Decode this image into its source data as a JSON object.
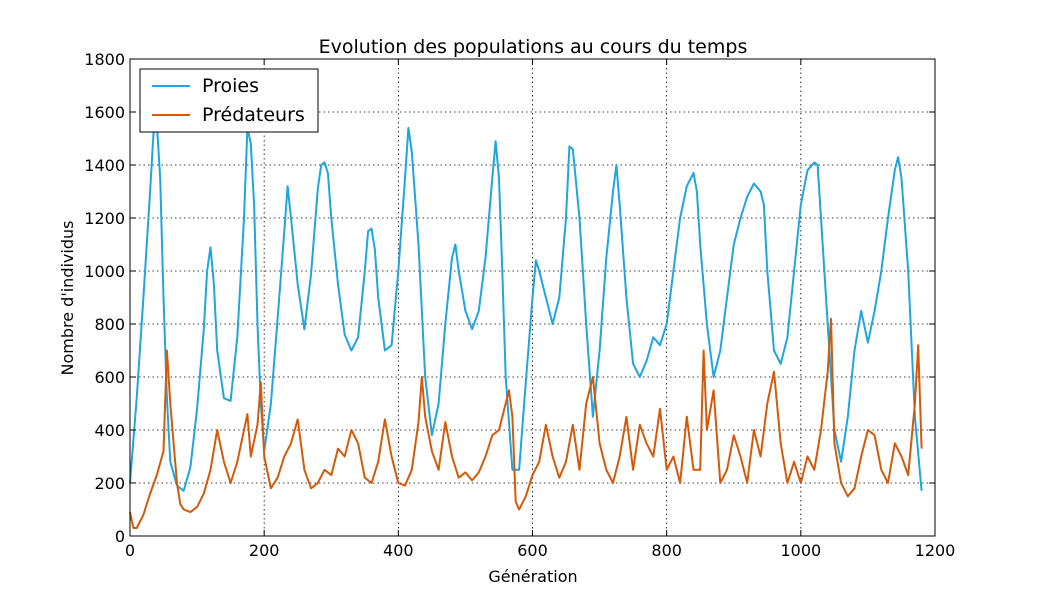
{
  "chart_data": {
    "type": "line",
    "title": "Evolution des populations au cours du temps",
    "xlabel": "Génération",
    "ylabel": "Nombre d'individus",
    "xlim": [
      0,
      1200
    ],
    "ylim": [
      0,
      1800
    ],
    "xticks": [
      0,
      200,
      400,
      600,
      800,
      1000,
      1200
    ],
    "yticks": [
      0,
      200,
      400,
      600,
      800,
      1000,
      1200,
      1400,
      1600,
      1800
    ],
    "grid": true,
    "legend_position": "upper-left",
    "series": [
      {
        "name": "Proies",
        "color": "#1fa5e0",
        "x": [
          0,
          10,
          20,
          30,
          35,
          40,
          45,
          50,
          55,
          60,
          70,
          80,
          90,
          100,
          110,
          115,
          120,
          125,
          130,
          140,
          150,
          160,
          170,
          175,
          180,
          185,
          190,
          195,
          200,
          210,
          220,
          230,
          235,
          240,
          250,
          260,
          270,
          280,
          285,
          290,
          295,
          300,
          310,
          320,
          330,
          340,
          350,
          355,
          360,
          365,
          370,
          380,
          390,
          400,
          410,
          415,
          420,
          430,
          440,
          450,
          460,
          470,
          480,
          485,
          490,
          500,
          510,
          520,
          530,
          540,
          545,
          550,
          555,
          560,
          570,
          580,
          590,
          600,
          605,
          610,
          620,
          630,
          640,
          650,
          655,
          660,
          670,
          680,
          690,
          700,
          710,
          720,
          725,
          730,
          740,
          750,
          760,
          770,
          780,
          790,
          800,
          810,
          820,
          830,
          840,
          845,
          850,
          860,
          870,
          880,
          890,
          900,
          910,
          920,
          930,
          940,
          945,
          950,
          960,
          970,
          980,
          990,
          1000,
          1010,
          1020,
          1025,
          1030,
          1040,
          1050,
          1060,
          1070,
          1080,
          1090,
          1100,
          1110,
          1120,
          1130,
          1140,
          1145,
          1150,
          1160,
          1170,
          1180
        ],
        "values": [
          200,
          520,
          900,
          1300,
          1520,
          1560,
          1350,
          900,
          520,
          280,
          190,
          170,
          260,
          480,
          780,
          1000,
          1090,
          950,
          700,
          520,
          510,
          750,
          1200,
          1540,
          1480,
          1250,
          800,
          500,
          320,
          500,
          820,
          1150,
          1320,
          1200,
          950,
          780,
          990,
          1310,
          1400,
          1410,
          1370,
          1200,
          950,
          760,
          700,
          750,
          1000,
          1150,
          1160,
          1080,
          900,
          700,
          720,
          1000,
          1350,
          1540,
          1450,
          1100,
          600,
          380,
          500,
          800,
          1050,
          1100,
          1000,
          850,
          780,
          850,
          1050,
          1350,
          1490,
          1350,
          1000,
          600,
          250,
          250,
          580,
          900,
          1040,
          1000,
          900,
          800,
          900,
          1200,
          1470,
          1460,
          1200,
          800,
          450,
          700,
          1050,
          1300,
          1400,
          1250,
          900,
          650,
          600,
          660,
          750,
          720,
          800,
          1000,
          1200,
          1320,
          1370,
          1300,
          1100,
          800,
          600,
          700,
          900,
          1100,
          1200,
          1280,
          1330,
          1300,
          1250,
          1000,
          700,
          650,
          750,
          1000,
          1250,
          1380,
          1410,
          1400,
          1200,
          800,
          400,
          280,
          450,
          700,
          850,
          730,
          850,
          1000,
          1200,
          1380,
          1430,
          1350,
          1000,
          450,
          170
        ],
        "visible_values_note": ""
      },
      {
        "name": "Prédateurs",
        "color": "#d35a0b",
        "x": [
          0,
          5,
          10,
          20,
          30,
          40,
          50,
          55,
          60,
          65,
          70,
          75,
          80,
          90,
          100,
          110,
          120,
          130,
          140,
          150,
          160,
          170,
          175,
          180,
          190,
          195,
          200,
          210,
          220,
          230,
          240,
          250,
          260,
          270,
          280,
          290,
          300,
          310,
          320,
          330,
          340,
          350,
          360,
          370,
          380,
          390,
          400,
          410,
          420,
          430,
          435,
          440,
          450,
          460,
          470,
          480,
          490,
          500,
          510,
          520,
          530,
          540,
          550,
          560,
          565,
          570,
          575,
          580,
          590,
          600,
          610,
          620,
          630,
          640,
          650,
          660,
          670,
          680,
          690,
          700,
          710,
          720,
          730,
          740,
          750,
          760,
          770,
          780,
          790,
          800,
          810,
          820,
          830,
          840,
          850,
          855,
          860,
          870,
          880,
          890,
          900,
          910,
          920,
          930,
          940,
          950,
          960,
          970,
          980,
          990,
          1000,
          1010,
          1020,
          1030,
          1040,
          1045,
          1050,
          1060,
          1070,
          1080,
          1090,
          1100,
          1110,
          1120,
          1130,
          1140,
          1150,
          1160,
          1170,
          1175,
          1180
        ],
        "values": [
          90,
          30,
          30,
          80,
          160,
          230,
          320,
          700,
          500,
          350,
          200,
          120,
          100,
          90,
          110,
          160,
          250,
          400,
          280,
          200,
          280,
          400,
          460,
          300,
          420,
          580,
          300,
          180,
          220,
          300,
          350,
          440,
          250,
          180,
          200,
          250,
          230,
          330,
          300,
          400,
          350,
          220,
          200,
          280,
          440,
          300,
          200,
          190,
          250,
          430,
          600,
          450,
          320,
          250,
          430,
          300,
          220,
          240,
          210,
          240,
          300,
          380,
          400,
          500,
          550,
          450,
          130,
          100,
          150,
          230,
          280,
          420,
          300,
          220,
          280,
          420,
          250,
          500,
          600,
          350,
          250,
          200,
          300,
          450,
          250,
          420,
          350,
          300,
          480,
          250,
          300,
          200,
          450,
          250,
          250,
          700,
          400,
          550,
          200,
          250,
          380,
          300,
          200,
          400,
          300,
          500,
          620,
          350,
          200,
          280,
          200,
          300,
          250,
          400,
          620,
          820,
          350,
          200,
          150,
          180,
          300,
          400,
          380,
          250,
          200,
          350,
          300,
          230,
          500,
          720,
          330
        ],
        "visible_values_note": ""
      }
    ]
  }
}
